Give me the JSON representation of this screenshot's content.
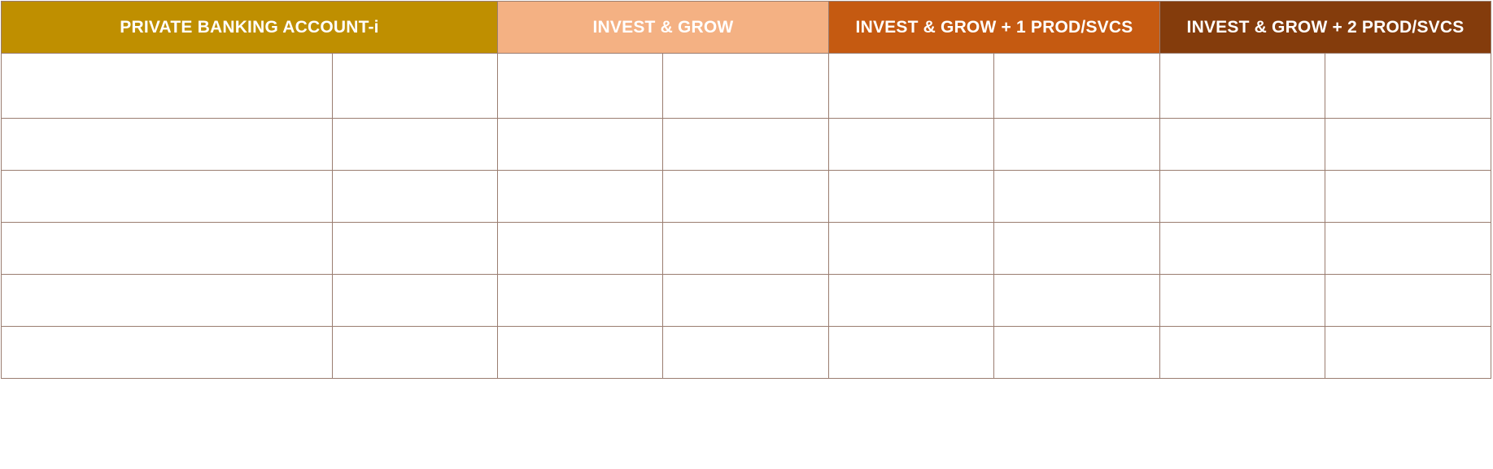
{
  "table": {
    "headers": [
      {
        "label": "PRIVATE BANKING ACCOUNT-i",
        "color": "#bf8f00"
      },
      {
        "label": "INVEST & GROW",
        "color": "#f4b183"
      },
      {
        "label": "INVEST & GROW + 1 PROD/SVCS",
        "color": "#c55a11"
      },
      {
        "label": "INVEST & GROW + 2 PROD/SVCS",
        "color": "#843c0c"
      }
    ],
    "body_rows": 6,
    "body_columns": 8,
    "rows": [
      [
        "",
        "",
        "",
        "",
        "",
        "",
        "",
        ""
      ],
      [
        "",
        "",
        "",
        "",
        "",
        "",
        "",
        ""
      ],
      [
        "",
        "",
        "",
        "",
        "",
        "",
        "",
        ""
      ],
      [
        "",
        "",
        "",
        "",
        "",
        "",
        "",
        ""
      ],
      [
        "",
        "",
        "",
        "",
        "",
        "",
        "",
        ""
      ],
      [
        "",
        "",
        "",
        "",
        "",
        "",
        "",
        ""
      ]
    ],
    "border_color": "#9a7d70"
  }
}
